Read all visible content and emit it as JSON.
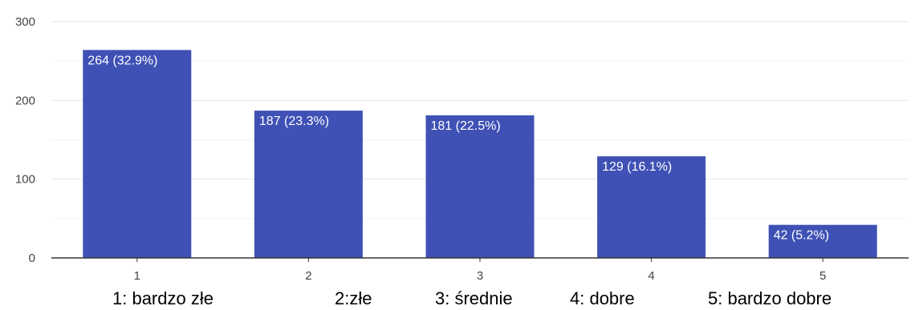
{
  "chart_data": {
    "type": "bar",
    "categories": [
      "1",
      "2",
      "3",
      "4",
      "5"
    ],
    "values": [
      264,
      187,
      181,
      129,
      42
    ],
    "data_labels": [
      "264 (32.9%)",
      "187 (23.3%)",
      "181 (22.5%)",
      "129 (16.1%)",
      "42 (5.2%)"
    ],
    "category_notes": [
      "1: bardzo złe",
      "2:złe",
      "3: średnie",
      "4: dobre",
      "5: bardzo dobre"
    ],
    "yticks": [
      0,
      100,
      200,
      300
    ],
    "ylim": [
      0,
      300
    ],
    "grid": true,
    "bar_color": "#3f51b5",
    "gridline_color": "#e6e6e6",
    "axis_color": "#333333"
  }
}
